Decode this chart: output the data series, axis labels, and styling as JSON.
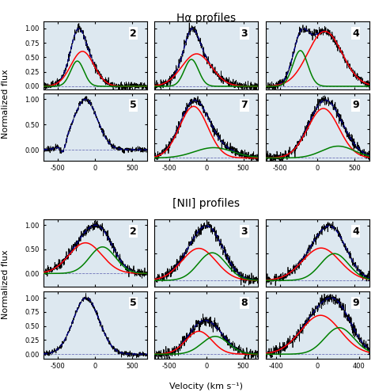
{
  "title_ha": "Hα profiles",
  "title_nii": "[NII] profiles",
  "xlabel": "Velocity (km s⁻¹)",
  "ylabel": "Normalized flux",
  "background_color": "#dde8f0",
  "ha_panels": [
    {
      "label": "2",
      "xmin": -700,
      "xmax": 700,
      "ymin": -0.05,
      "ymax": 1.12,
      "yticks": [
        0.0,
        0.25,
        0.5,
        0.75,
        1.0
      ],
      "components": [
        {
          "type": "red",
          "amp": 0.72,
          "mu": -170,
          "sigma": 155
        },
        {
          "type": "green",
          "amp": 0.52,
          "mu": -240,
          "sigma": 90
        }
      ],
      "fit_color": "blue",
      "noise": 0.035,
      "seed": 1
    },
    {
      "label": "3",
      "xmin": -700,
      "xmax": 700,
      "ymin": -0.05,
      "ymax": 1.12,
      "yticks": [
        0.0,
        0.25,
        0.5,
        0.75,
        1.0
      ],
      "components": [
        {
          "type": "red",
          "amp": 0.7,
          "mu": -130,
          "sigma": 200
        },
        {
          "type": "green",
          "amp": 0.58,
          "mu": -200,
          "sigma": 95
        }
      ],
      "fit_color": "blue",
      "noise": 0.038,
      "seed": 2
    },
    {
      "label": "4",
      "xmin": -700,
      "xmax": 700,
      "ymin": -0.05,
      "ymax": 1.12,
      "yticks": [
        0.0,
        0.25,
        0.5,
        0.75,
        1.0
      ],
      "components": [
        {
          "type": "red",
          "amp": 0.8,
          "mu": 100,
          "sigma": 230
        },
        {
          "type": "green",
          "amp": 0.52,
          "mu": -230,
          "sigma": 100
        }
      ],
      "fit_color": "blue",
      "noise": 0.035,
      "seed": 3
    },
    {
      "label": "5",
      "xmin": -700,
      "xmax": 700,
      "ymin": -0.22,
      "ymax": 1.12,
      "yticks": [
        0.0,
        0.5,
        1.0
      ],
      "components": [],
      "fit_color": "blue",
      "noise": 0.03,
      "seed": 4,
      "single_mu": -130,
      "single_sigma": 160,
      "absorption": true,
      "abs_mu": -430,
      "abs_sigma": 35,
      "abs_amp": -0.2
    },
    {
      "label": "7",
      "xmin": -700,
      "xmax": 700,
      "ymin": -0.05,
      "ymax": 1.12,
      "yticks": [
        0.0,
        0.25,
        0.5,
        0.75,
        1.0
      ],
      "components": [
        {
          "type": "red",
          "amp": 0.9,
          "mu": -170,
          "sigma": 190
        },
        {
          "type": "green",
          "amp": 0.18,
          "mu": 100,
          "sigma": 260
        }
      ],
      "fit_color": "blue",
      "noise": 0.04,
      "seed": 5
    },
    {
      "label": "9",
      "xmin": -700,
      "xmax": 700,
      "ymin": -0.05,
      "ymax": 1.12,
      "yticks": [
        0.0,
        0.25,
        0.5,
        0.75,
        1.0
      ],
      "components": [
        {
          "type": "red",
          "amp": 0.92,
          "mu": 80,
          "sigma": 210
        },
        {
          "type": "green",
          "amp": 0.22,
          "mu": 280,
          "sigma": 220
        }
      ],
      "fit_color": "blue",
      "noise": 0.045,
      "seed": 6
    }
  ],
  "nii_panels": [
    {
      "label": "2",
      "xmin": -700,
      "xmax": 700,
      "ymin": -0.28,
      "ymax": 1.12,
      "yticks": [
        0.0,
        0.5,
        1.0
      ],
      "components": [
        {
          "type": "red",
          "amp": 0.6,
          "mu": -130,
          "sigma": 220
        },
        {
          "type": "green",
          "amp": 0.52,
          "mu": 100,
          "sigma": 175
        }
      ],
      "fit_color": "blue",
      "noise": 0.05,
      "seed": 10
    },
    {
      "label": "3",
      "xmin": -700,
      "xmax": 700,
      "ymin": -0.12,
      "ymax": 1.12,
      "yticks": [
        0.0,
        0.5,
        1.0
      ],
      "components": [
        {
          "type": "red",
          "amp": 0.58,
          "mu": -100,
          "sigma": 230
        },
        {
          "type": "green",
          "amp": 0.5,
          "mu": 80,
          "sigma": 190
        }
      ],
      "fit_color": "blue",
      "noise": 0.05,
      "seed": 11
    },
    {
      "label": "4",
      "xmin": -700,
      "xmax": 700,
      "ymin": -0.12,
      "ymax": 1.12,
      "yticks": [
        0.0,
        0.5,
        1.0
      ],
      "components": [
        {
          "type": "red",
          "amp": 0.58,
          "mu": 50,
          "sigma": 250
        },
        {
          "type": "green",
          "amp": 0.48,
          "mu": 230,
          "sigma": 190
        }
      ],
      "fit_color": "blue",
      "noise": 0.04,
      "seed": 12
    },
    {
      "label": "5",
      "xmin": -700,
      "xmax": 700,
      "ymin": -0.08,
      "ymax": 1.12,
      "yticks": [
        0.0,
        0.25,
        0.5,
        0.75,
        1.0
      ],
      "components": [],
      "fit_color": "blue",
      "noise": 0.025,
      "seed": 13,
      "single_mu": -120,
      "single_sigma": 175,
      "absorption": false
    },
    {
      "label": "8",
      "xmin": -700,
      "xmax": 700,
      "ymin": -0.08,
      "ymax": 1.12,
      "yticks": [
        0.0,
        0.25,
        0.5,
        0.75,
        1.0
      ],
      "components": [
        {
          "type": "red",
          "amp": 0.54,
          "mu": -100,
          "sigma": 175
        },
        {
          "type": "green",
          "amp": 0.42,
          "mu": 120,
          "sigma": 180
        }
      ],
      "fit_color": "blue",
      "noise": 0.045,
      "seed": 14,
      "peak_amp": 0.6
    },
    {
      "label": "9",
      "xmin": -500,
      "xmax": 500,
      "ymin": -0.08,
      "ymax": 1.12,
      "yticks": [
        0.0,
        0.25,
        0.5,
        0.75,
        1.0
      ],
      "components": [
        {
          "type": "red",
          "amp": 0.85,
          "mu": 30,
          "sigma": 190
        },
        {
          "type": "green",
          "amp": 0.58,
          "mu": 210,
          "sigma": 140
        }
      ],
      "fit_color": "blue",
      "noise": 0.05,
      "seed": 15
    }
  ]
}
